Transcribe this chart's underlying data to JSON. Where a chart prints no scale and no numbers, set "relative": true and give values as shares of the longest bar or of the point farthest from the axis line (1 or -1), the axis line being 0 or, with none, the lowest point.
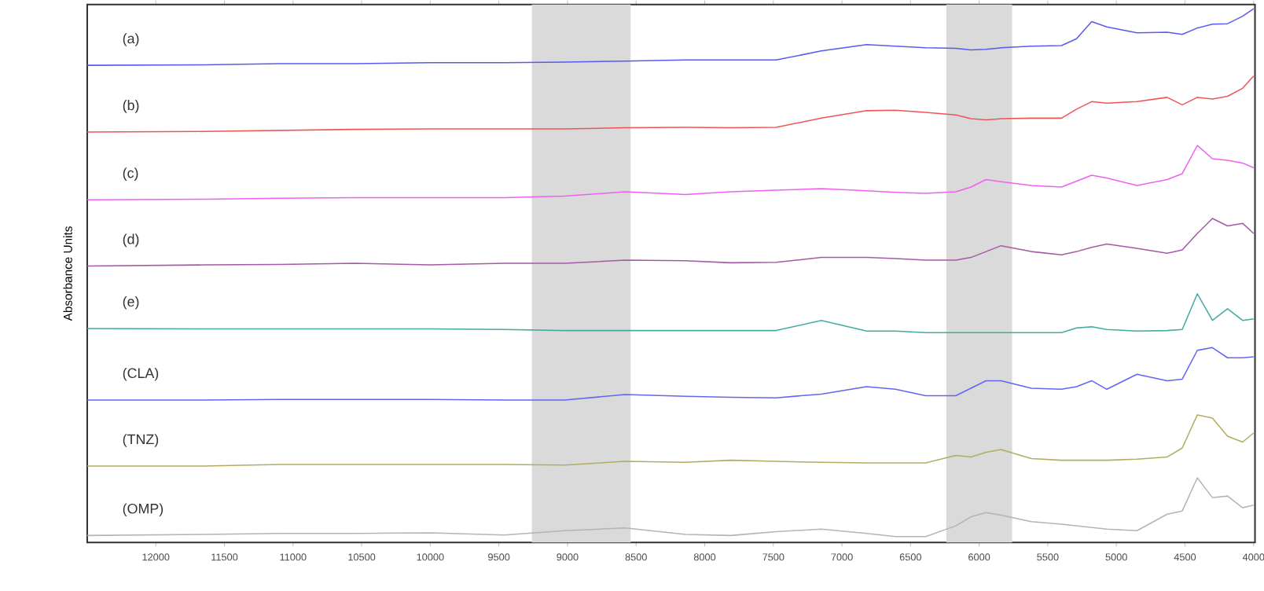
{
  "chart_data": {
    "type": "line",
    "relative": true,
    "ylabel": "Absorbance Units",
    "x": [
      12500,
      11650,
      11100,
      10550,
      10000,
      9460,
      9020,
      8580,
      8140,
      7810,
      7480,
      7150,
      6820,
      6610,
      6390,
      6170,
      6060,
      5950,
      5840,
      5620,
      5400,
      5290,
      5180,
      5070,
      4850,
      4630,
      4520,
      4410,
      4300,
      4190,
      4080,
      4000
    ],
    "xlim": [
      12500,
      3990
    ],
    "xticks": [
      12000,
      11500,
      11000,
      10500,
      10000,
      9500,
      9000,
      8500,
      8000,
      7500,
      7000,
      6500,
      6000,
      5500,
      5000,
      4500,
      4000
    ],
    "bands": [
      {
        "axis": "x",
        "from": 9260,
        "to": 8540,
        "color": "#d9dad9"
      },
      {
        "axis": "x",
        "from": 6240,
        "to": 5760,
        "color": "#d9dad9"
      }
    ],
    "series": [
      {
        "name": "(a)",
        "color": "#5a5af0",
        "values": [
          0.894,
          0.895,
          0.897,
          0.897,
          0.899,
          0.899,
          0.9,
          0.902,
          0.904,
          0.904,
          0.904,
          0.921,
          0.933,
          0.93,
          0.927,
          0.926,
          0.923,
          0.924,
          0.927,
          0.93,
          0.931,
          0.944,
          0.976,
          0.966,
          0.955,
          0.956,
          0.952,
          0.964,
          0.971,
          0.972,
          0.986,
          1.0
        ]
      },
      {
        "name": "(b)",
        "color": "#f05555",
        "values": [
          0.769,
          0.77,
          0.772,
          0.774,
          0.775,
          0.775,
          0.775,
          0.777,
          0.778,
          0.777,
          0.778,
          0.795,
          0.809,
          0.81,
          0.806,
          0.801,
          0.794,
          0.792,
          0.794,
          0.795,
          0.795,
          0.812,
          0.826,
          0.823,
          0.826,
          0.834,
          0.82,
          0.834,
          0.831,
          0.836,
          0.851,
          0.874
        ]
      },
      {
        "name": "(c)",
        "color": "#f060f0",
        "values": [
          0.642,
          0.643,
          0.645,
          0.646,
          0.646,
          0.646,
          0.649,
          0.657,
          0.652,
          0.657,
          0.66,
          0.663,
          0.659,
          0.656,
          0.654,
          0.657,
          0.666,
          0.68,
          0.676,
          0.669,
          0.666,
          0.677,
          0.688,
          0.683,
          0.669,
          0.68,
          0.691,
          0.744,
          0.719,
          0.716,
          0.711,
          0.702
        ]
      },
      {
        "name": "(d)",
        "color": "#a55aa5",
        "values": [
          0.518,
          0.52,
          0.521,
          0.523,
          0.52,
          0.523,
          0.523,
          0.529,
          0.528,
          0.524,
          0.525,
          0.534,
          0.534,
          0.532,
          0.529,
          0.529,
          0.534,
          0.545,
          0.556,
          0.545,
          0.539,
          0.545,
          0.553,
          0.559,
          0.551,
          0.542,
          0.548,
          0.579,
          0.607,
          0.593,
          0.598,
          0.579
        ]
      },
      {
        "name": "(e)",
        "color": "#45aaa0",
        "values": [
          0.401,
          0.4,
          0.4,
          0.4,
          0.4,
          0.399,
          0.397,
          0.397,
          0.397,
          0.397,
          0.397,
          0.416,
          0.396,
          0.396,
          0.393,
          0.393,
          0.393,
          0.393,
          0.393,
          0.393,
          0.393,
          0.402,
          0.404,
          0.399,
          0.396,
          0.397,
          0.399,
          0.466,
          0.416,
          0.438,
          0.416,
          0.419
        ]
      },
      {
        "name": "(CLA)",
        "color": "#6464f5",
        "values": [
          0.267,
          0.267,
          0.268,
          0.268,
          0.268,
          0.267,
          0.267,
          0.277,
          0.274,
          0.272,
          0.271,
          0.278,
          0.292,
          0.287,
          0.275,
          0.275,
          0.289,
          0.303,
          0.303,
          0.289,
          0.287,
          0.292,
          0.303,
          0.287,
          0.315,
          0.303,
          0.306,
          0.36,
          0.365,
          0.346,
          0.346,
          0.348
        ]
      },
      {
        "name": "(TNZ)",
        "color": "#b2ad60",
        "values": [
          0.143,
          0.143,
          0.146,
          0.146,
          0.146,
          0.146,
          0.145,
          0.152,
          0.15,
          0.154,
          0.152,
          0.15,
          0.149,
          0.149,
          0.149,
          0.163,
          0.16,
          0.169,
          0.174,
          0.157,
          0.154,
          0.154,
          0.154,
          0.154,
          0.156,
          0.16,
          0.177,
          0.239,
          0.233,
          0.199,
          0.188,
          0.205
        ]
      },
      {
        "name": "(OMP)",
        "color": "#b4b4b4",
        "values": [
          0.013,
          0.015,
          0.017,
          0.017,
          0.018,
          0.014,
          0.022,
          0.027,
          0.015,
          0.013,
          0.02,
          0.025,
          0.017,
          0.011,
          0.011,
          0.031,
          0.048,
          0.056,
          0.051,
          0.039,
          0.034,
          0.031,
          0.028,
          0.025,
          0.022,
          0.053,
          0.059,
          0.121,
          0.084,
          0.087,
          0.065,
          0.07
        ]
      }
    ]
  }
}
